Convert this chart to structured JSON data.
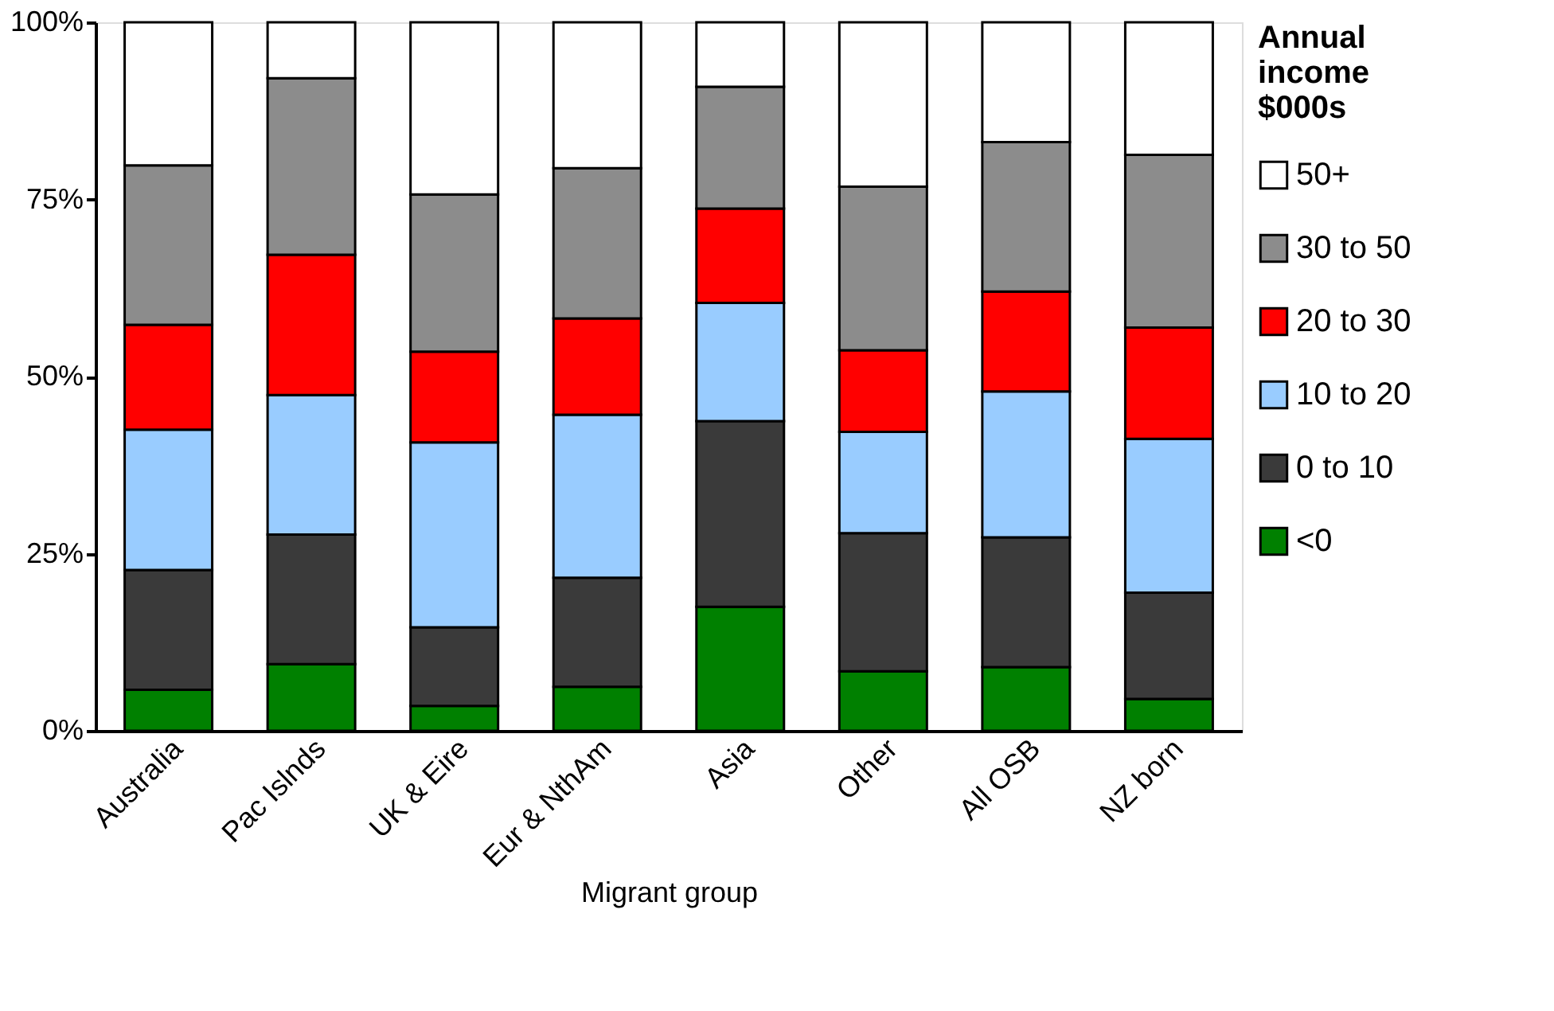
{
  "chart_data": {
    "type": "bar",
    "stacked": true,
    "xlabel": "Migrant group",
    "legend_title": "Annual income $000s",
    "legend": "right",
    "grid": false,
    "categories": [
      "Australia",
      "Pac Islnds",
      "UK & Eire",
      "Eur & NthAm",
      "Asia",
      "Other",
      "All OSB",
      "NZ born"
    ],
    "ylim": [
      0,
      100
    ],
    "yticks": [
      {
        "value": 0,
        "label": "0%"
      },
      {
        "value": 25,
        "label": "25%"
      },
      {
        "value": 50,
        "label": "50%"
      },
      {
        "value": 75,
        "label": "75%"
      },
      {
        "value": 100,
        "label": "100%"
      }
    ],
    "series": [
      {
        "name": "<0",
        "color": "#008000",
        "values": [
          5.8,
          9.4,
          3.5,
          6.2,
          17.5,
          8.4,
          9.0,
          4.5
        ]
      },
      {
        "name": "0 to 10",
        "color": "#3a3a3a",
        "values": [
          16.9,
          18.3,
          11.1,
          15.4,
          26.2,
          19.5,
          18.3,
          15.0
        ]
      },
      {
        "name": "10 to 20",
        "color": "#99ccff",
        "values": [
          19.8,
          19.7,
          26.1,
          23.0,
          16.7,
          14.3,
          20.6,
          21.7
        ]
      },
      {
        "name": "20 to 30",
        "color": "#ff0000",
        "values": [
          14.8,
          19.8,
          12.8,
          13.6,
          13.3,
          11.5,
          14.1,
          15.7
        ]
      },
      {
        "name": "30 to 50",
        "color": "#8c8c8c",
        "values": [
          22.5,
          24.9,
          22.2,
          21.2,
          17.2,
          23.1,
          21.1,
          24.4
        ]
      },
      {
        "name": "50+",
        "color": "#ffffff",
        "values": [
          20.2,
          7.9,
          24.3,
          20.6,
          9.1,
          23.2,
          16.9,
          18.7
        ]
      }
    ]
  }
}
